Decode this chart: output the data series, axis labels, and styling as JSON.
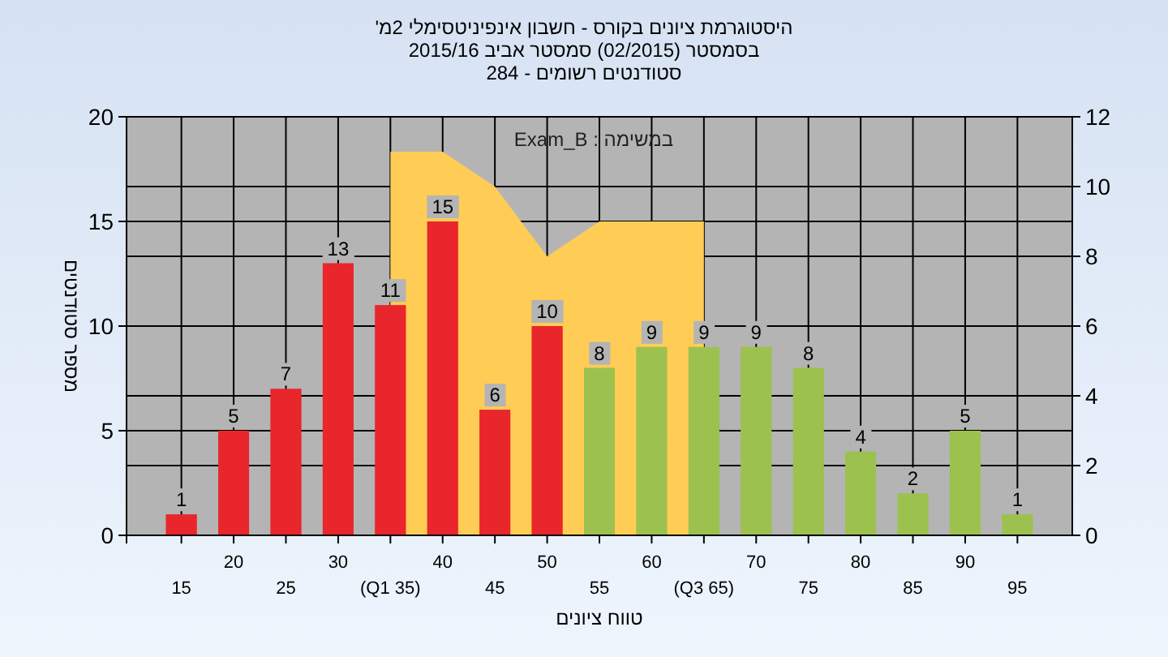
{
  "chart_data": {
    "type": "bar",
    "title": "היסטוגרמת ציונים בקורס - חשבון אינפיניטסימלי 2מ'",
    "subtitle": "בסמסטר (02/2015) סמסטר אביב 2015/16",
    "annotations": [
      "סטודנטים רשומים - 284",
      "במשימה : Exam_B"
    ],
    "xlabel": "טווח ציונים",
    "ylabel": "מספר סטודנטים",
    "categories": [
      "15",
      "20",
      "25",
      "30",
      "(Q1 35)",
      "40",
      "45",
      "50",
      "55",
      "60",
      "(Q3 65)",
      "70",
      "75",
      "80",
      "85",
      "90",
      "95"
    ],
    "series": [
      {
        "type": "area",
        "axis": "y2",
        "color": "#ffcc55",
        "values": [
          null,
          null,
          null,
          null,
          11,
          11,
          10,
          8,
          9,
          9,
          9,
          null,
          null,
          null,
          null,
          null,
          null
        ]
      },
      {
        "values": [
          1,
          5,
          7,
          13,
          11,
          15,
          6,
          10,
          8,
          9,
          9,
          9,
          8,
          4,
          2,
          5,
          1
        ],
        "value_labels": [
          "1",
          "5",
          "7",
          "13",
          "11",
          "15",
          "6",
          "10",
          "8",
          "9",
          "9",
          "9",
          "8",
          "4",
          "2",
          "5",
          "1"
        ],
        "colors": [
          "#e8262c",
          "#e8262c",
          "#e8262c",
          "#e8262c",
          "#e8262c",
          "#e8262c",
          "#e8262c",
          "#e8262c",
          "#9cc14e",
          "#9cc14e",
          "#9cc14e",
          "#9cc14e",
          "#9cc14e",
          "#9cc14e",
          "#9cc14e",
          "#9cc14e",
          "#9cc14e"
        ]
      }
    ],
    "ylim": [
      0,
      20
    ],
    "yticks": [
      0,
      5,
      10,
      15,
      20
    ],
    "y2lim": [
      0,
      12
    ],
    "y2ticks": [
      0,
      2,
      4,
      6,
      8,
      10,
      12
    ],
    "grid": true
  }
}
